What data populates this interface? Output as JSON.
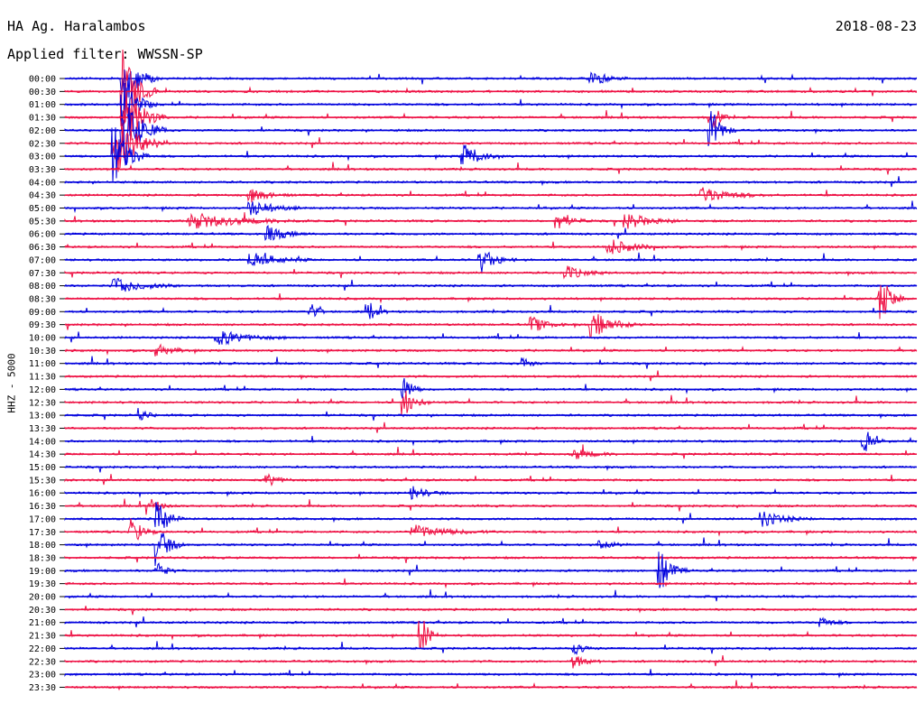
{
  "header": {
    "station": "HA Ag. Haralambos",
    "filter": "Applied filter: WWSSN-SP",
    "date": "2018-08-23"
  },
  "axis": {
    "ylabel": "HHZ - 5000"
  },
  "colors": {
    "line_a": "#0000dd",
    "line_b": "#ee1144"
  },
  "chart_data": {
    "type": "line",
    "title": "HA Ag. Haralambos",
    "ylabel": "HHZ - 5000",
    "rows": [
      "00:00",
      "00:30",
      "01:00",
      "01:30",
      "02:00",
      "02:30",
      "03:00",
      "03:30",
      "04:00",
      "04:30",
      "05:00",
      "05:30",
      "06:00",
      "06:30",
      "07:00",
      "07:30",
      "08:00",
      "08:30",
      "09:00",
      "09:30",
      "10:00",
      "10:30",
      "11:00",
      "11:30",
      "12:00",
      "12:30",
      "13:00",
      "13:30",
      "14:00",
      "14:30",
      "15:00",
      "15:30",
      "16:00",
      "16:30",
      "17:00",
      "17:30",
      "18:00",
      "18:30",
      "19:00",
      "19:30",
      "20:00",
      "20:30",
      "21:00",
      "21:30",
      "22:00",
      "22:30",
      "23:00",
      "23:30"
    ],
    "row_colors": [
      "line_a",
      "line_b"
    ],
    "events": [
      {
        "row": 0,
        "at": 0.07,
        "amp": 2.2,
        "len": 0.04
      },
      {
        "row": 1,
        "at": 0.07,
        "amp": 3.0,
        "len": 0.04
      },
      {
        "row": 2,
        "at": 0.07,
        "amp": 1.8,
        "len": 0.04
      },
      {
        "row": 3,
        "at": 0.07,
        "amp": 2.6,
        "len": 0.05
      },
      {
        "row": 4,
        "at": 0.07,
        "amp": 2.8,
        "len": 0.05
      },
      {
        "row": 5,
        "at": 0.06,
        "amp": 2.6,
        "len": 0.06
      },
      {
        "row": 6,
        "at": 0.06,
        "amp": 2.4,
        "len": 0.04
      },
      {
        "row": 6,
        "at": 0.47,
        "amp": 0.9,
        "len": 0.05
      },
      {
        "row": 4,
        "at": 0.76,
        "amp": 1.5,
        "len": 0.03
      },
      {
        "row": 3,
        "at": 0.76,
        "amp": 1.2,
        "len": 0.02
      },
      {
        "row": 0,
        "at": 0.62,
        "amp": 0.6,
        "len": 0.04
      },
      {
        "row": 9,
        "at": 0.22,
        "amp": 0.5,
        "len": 0.05
      },
      {
        "row": 9,
        "at": 0.75,
        "amp": 0.6,
        "len": 0.08
      },
      {
        "row": 10,
        "at": 0.22,
        "amp": 0.6,
        "len": 0.06
      },
      {
        "row": 11,
        "at": 0.15,
        "amp": 0.6,
        "len": 0.14
      },
      {
        "row": 11,
        "at": 0.58,
        "amp": 0.6,
        "len": 0.04
      },
      {
        "row": 11,
        "at": 0.66,
        "amp": 0.6,
        "len": 0.07
      },
      {
        "row": 12,
        "at": 0.24,
        "amp": 0.6,
        "len": 0.05
      },
      {
        "row": 13,
        "at": 0.64,
        "amp": 0.6,
        "len": 0.07
      },
      {
        "row": 14,
        "at": 0.49,
        "amp": 0.9,
        "len": 0.04
      },
      {
        "row": 14,
        "at": 0.22,
        "amp": 0.6,
        "len": 0.07
      },
      {
        "row": 15,
        "at": 0.59,
        "amp": 0.5,
        "len": 0.05
      },
      {
        "row": 16,
        "at": 0.06,
        "amp": 0.6,
        "len": 0.08
      },
      {
        "row": 17,
        "at": 0.96,
        "amp": 1.6,
        "len": 0.03
      },
      {
        "row": 18,
        "at": 0.36,
        "amp": 0.6,
        "len": 0.02
      },
      {
        "row": 18,
        "at": 0.29,
        "amp": 0.6,
        "len": 0.02
      },
      {
        "row": 19,
        "at": 0.55,
        "amp": 0.6,
        "len": 0.04
      },
      {
        "row": 19,
        "at": 0.62,
        "amp": 1.0,
        "len": 0.06
      },
      {
        "row": 20,
        "at": 0.18,
        "amp": 0.6,
        "len": 0.08
      },
      {
        "row": 21,
        "at": 0.11,
        "amp": 0.5,
        "len": 0.04
      },
      {
        "row": 22,
        "at": 0.54,
        "amp": 0.5,
        "len": 0.02
      },
      {
        "row": 24,
        "at": 0.4,
        "amp": 1.0,
        "len": 0.02
      },
      {
        "row": 25,
        "at": 0.4,
        "amp": 1.0,
        "len": 0.03
      },
      {
        "row": 26,
        "at": 0.09,
        "amp": 0.5,
        "len": 0.02
      },
      {
        "row": 28,
        "at": 0.94,
        "amp": 1.1,
        "len": 0.02
      },
      {
        "row": 29,
        "at": 0.6,
        "amp": 0.4,
        "len": 0.05
      },
      {
        "row": 31,
        "at": 0.24,
        "amp": 0.5,
        "len": 0.03
      },
      {
        "row": 32,
        "at": 0.41,
        "amp": 0.5,
        "len": 0.04
      },
      {
        "row": 33,
        "at": 0.1,
        "amp": 0.6,
        "len": 0.03
      },
      {
        "row": 34,
        "at": 0.82,
        "amp": 0.6,
        "len": 0.06
      },
      {
        "row": 34,
        "at": 0.11,
        "amp": 1.4,
        "len": 0.03
      },
      {
        "row": 35,
        "at": 0.08,
        "amp": 1.0,
        "len": 0.03
      },
      {
        "row": 35,
        "at": 0.41,
        "amp": 0.5,
        "len": 0.1
      },
      {
        "row": 36,
        "at": 0.11,
        "amp": 1.6,
        "len": 0.03
      },
      {
        "row": 36,
        "at": 0.63,
        "amp": 0.5,
        "len": 0.03
      },
      {
        "row": 38,
        "at": 0.7,
        "amp": 1.6,
        "len": 0.03
      },
      {
        "row": 38,
        "at": 0.11,
        "amp": 0.8,
        "len": 0.02
      },
      {
        "row": 42,
        "at": 0.89,
        "amp": 0.4,
        "len": 0.03
      },
      {
        "row": 43,
        "at": 0.42,
        "amp": 1.4,
        "len": 0.02
      },
      {
        "row": 44,
        "at": 0.6,
        "amp": 0.4,
        "len": 0.03
      },
      {
        "row": 45,
        "at": 0.6,
        "amp": 0.5,
        "len": 0.03
      }
    ]
  }
}
